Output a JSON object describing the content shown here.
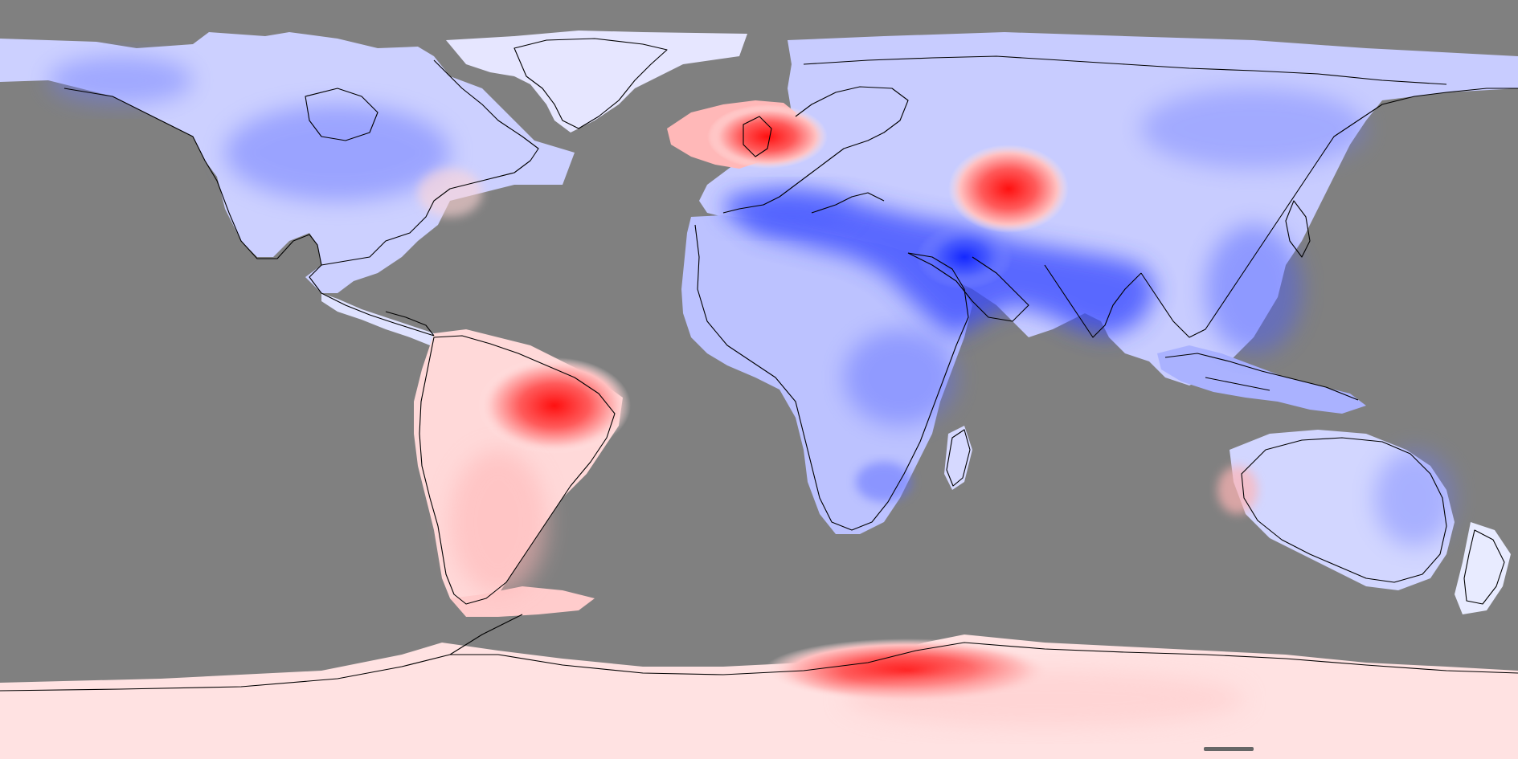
{
  "map": {
    "ocean_color": "#808080",
    "colormap": {
      "negative": "#1f2fff",
      "neutral": "#ffffff",
      "positive": "#ff1a1a"
    },
    "regions": [
      {
        "name": "north-america",
        "tone": "cool"
      },
      {
        "name": "greenland",
        "tone": "mixed"
      },
      {
        "name": "europe-north-atlantic",
        "tone": "warm"
      },
      {
        "name": "central-asia",
        "tone": "warm"
      },
      {
        "name": "middle-east-south-asia",
        "tone": "cold"
      },
      {
        "name": "africa",
        "tone": "cool"
      },
      {
        "name": "south-america-amazon",
        "tone": "warm"
      },
      {
        "name": "australia",
        "tone": "cool"
      },
      {
        "name": "antarctica",
        "tone": "warm"
      }
    ]
  }
}
